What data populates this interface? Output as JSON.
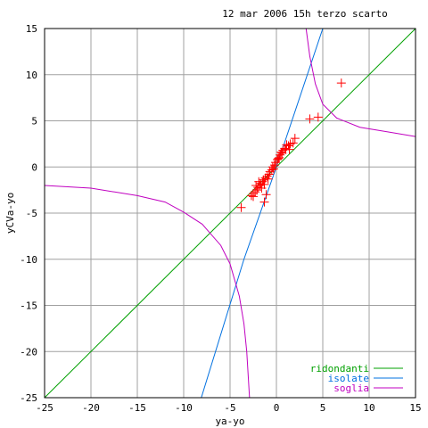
{
  "chart_data": {
    "type": "scatter",
    "title": "12 mar 2006 15h terzo scarto",
    "xlabel": "ya-yo",
    "ylabel": "yCVa-yo",
    "xlim": [
      -25,
      15
    ],
    "ylim": [
      -25,
      15
    ],
    "xticks": [
      -25,
      -20,
      -15,
      -10,
      -5,
      0,
      5,
      10,
      15
    ],
    "yticks": [
      -25,
      -20,
      -15,
      -10,
      -5,
      0,
      5,
      10,
      15
    ],
    "grid": true,
    "legend_position": "bottom-right",
    "series": [
      {
        "name": "ridondanti",
        "kind": "line",
        "color": "#00a000",
        "points": [
          [
            -25,
            -25
          ],
          [
            15,
            15
          ]
        ]
      },
      {
        "name": "isolate",
        "kind": "line",
        "color": "#0070e0",
        "points": [
          [
            -8.1,
            -25
          ],
          [
            -3.5,
            -10
          ],
          [
            0,
            0
          ],
          [
            5,
            15
          ]
        ]
      },
      {
        "name": "soglia",
        "kind": "curve",
        "color": "#c000c0",
        "points": [
          [
            3.2,
            15
          ],
          [
            3.6,
            12
          ],
          [
            4.2,
            9
          ],
          [
            5,
            6.8
          ],
          [
            6.5,
            5.3
          ],
          [
            9,
            4.3
          ],
          [
            12,
            3.8
          ],
          [
            15,
            3.3
          ]
        ]
      },
      {
        "name": "soglia",
        "kind": "curve",
        "color": "#c000c0",
        "legend": false,
        "points": [
          [
            -25,
            -2
          ],
          [
            -20,
            -2.3
          ],
          [
            -15,
            -3.1
          ],
          [
            -12,
            -3.8
          ],
          [
            -10,
            -4.9
          ],
          [
            -8,
            -6.2
          ],
          [
            -6,
            -8.5
          ],
          [
            -5,
            -10.5
          ],
          [
            -4,
            -14
          ],
          [
            -3.5,
            -17
          ],
          [
            -3.2,
            -20
          ],
          [
            -2.9,
            -25
          ]
        ]
      },
      {
        "name": "",
        "kind": "points",
        "color": "#ff0000",
        "marker": "+",
        "points": [
          [
            7,
            9.1
          ],
          [
            4.5,
            5.4
          ],
          [
            3.6,
            5.2
          ],
          [
            2,
            3.1
          ],
          [
            1.8,
            2.6
          ],
          [
            1.5,
            2.5
          ],
          [
            1.3,
            2.3
          ],
          [
            1.1,
            2.4
          ],
          [
            0.9,
            2.0
          ],
          [
            1.4,
            1.9
          ],
          [
            0.7,
            1.8
          ],
          [
            0.5,
            1.6
          ],
          [
            0.4,
            1.3
          ],
          [
            0.3,
            1.0
          ],
          [
            0.1,
            0.8
          ],
          [
            -0.1,
            0.5
          ],
          [
            -0.2,
            0.2
          ],
          [
            -0.4,
            0
          ],
          [
            -0.5,
            -0.3
          ],
          [
            -0.7,
            -0.5
          ],
          [
            -0.8,
            -0.8
          ],
          [
            -1.0,
            -1.0
          ],
          [
            -1.2,
            -1.2
          ],
          [
            -1.4,
            -1.4
          ],
          [
            -1.5,
            -1.6
          ],
          [
            -1.7,
            -1.8
          ],
          [
            -1.8,
            -2.0
          ],
          [
            -2.0,
            -2.2
          ],
          [
            -2.1,
            -2.5
          ],
          [
            -2.3,
            -2.7
          ],
          [
            -2.5,
            -2.9
          ],
          [
            -2.7,
            -3.1
          ],
          [
            -2.2,
            -2.0
          ],
          [
            -1.9,
            -1.6
          ],
          [
            -1.3,
            -1.9
          ],
          [
            -1.1,
            -3.0
          ],
          [
            -1.3,
            -3.8
          ],
          [
            -2.5,
            -3.2
          ],
          [
            -3.8,
            -4.4
          ],
          [
            0.6,
            1.5
          ],
          [
            1.0,
            1.9
          ],
          [
            0.2,
            0.9
          ],
          [
            -0.3,
            -0.2
          ],
          [
            -0.9,
            -1.3
          ],
          [
            -1.6,
            -2.3
          ]
        ]
      }
    ]
  }
}
